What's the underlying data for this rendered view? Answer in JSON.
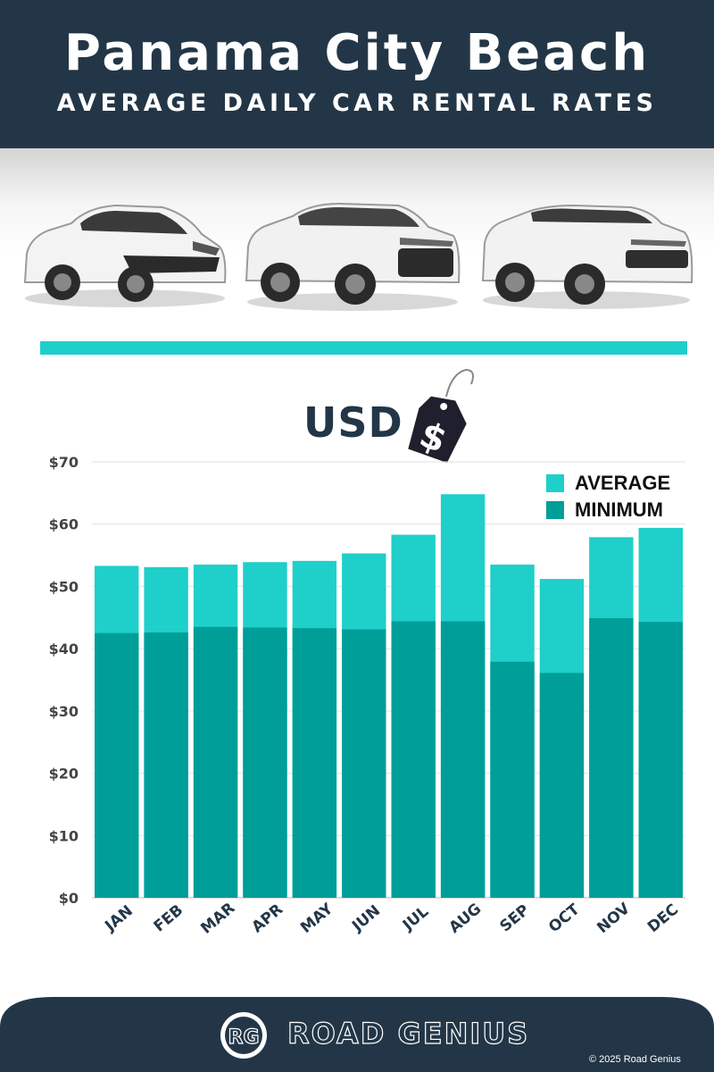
{
  "header": {
    "title": "Panama City Beach",
    "subtitle": "AVERAGE DAILY CAR RENTAL RATES"
  },
  "currency_label": "USD",
  "tag_symbol": "$",
  "colors": {
    "header_bg": "#233647",
    "average": "#1fcfca",
    "minimum": "#009e98",
    "divider": "#1fcfca"
  },
  "chart_data": {
    "type": "bar",
    "stacked": "overlay",
    "categories": [
      "JAN",
      "FEB",
      "MAR",
      "APR",
      "MAY",
      "JUN",
      "JUL",
      "AUG",
      "SEP",
      "OCT",
      "NOV",
      "DEC"
    ],
    "series": [
      {
        "name": "AVERAGE",
        "values": [
          53.3,
          53.1,
          53.5,
          53.9,
          54.1,
          55.3,
          58.3,
          64.8,
          53.5,
          51.2,
          57.9,
          59.4
        ]
      },
      {
        "name": "MINIMUM",
        "values": [
          42.5,
          42.6,
          43.5,
          43.4,
          43.3,
          43.1,
          44.4,
          44.4,
          37.9,
          36.1,
          44.9,
          44.3
        ]
      }
    ],
    "y_ticks": [
      "$0",
      "$10",
      "$20",
      "$30",
      "$40",
      "$50",
      "$60",
      "$70"
    ],
    "ylim": [
      0,
      70
    ],
    "grid": true,
    "legend_position": "top-right"
  },
  "footer": {
    "brand_initials": "RG",
    "brand_name": "ROAD GENIUS",
    "copyright": "© 2025 Road Genius"
  }
}
